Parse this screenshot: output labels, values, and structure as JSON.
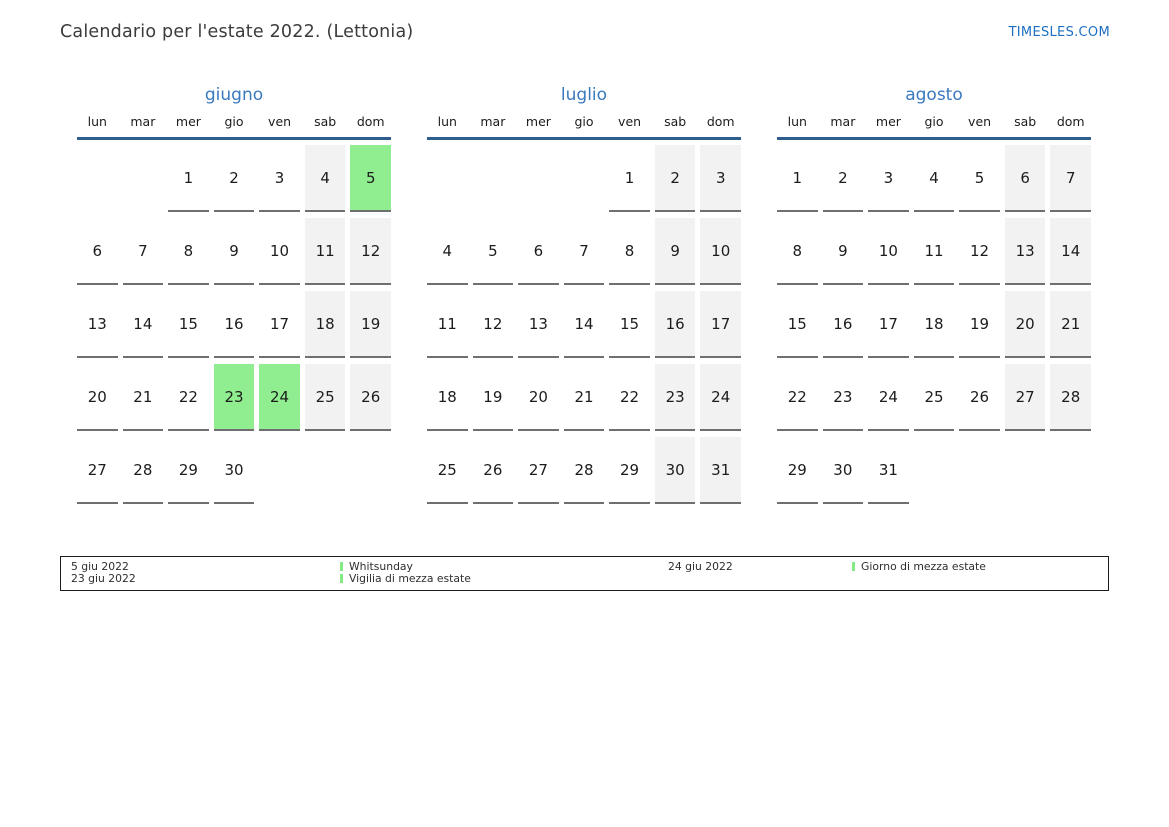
{
  "page": {
    "title": "Calendario per l'estate 2022. (Lettonia)",
    "brand": "TIMESLES.COM"
  },
  "colors": {
    "accent_blue": "#1e6fc0",
    "month_title_blue": "#3a79bd",
    "header_line_blue": "#2f5e8e",
    "holiday_green": "#90ee90",
    "weekend_gray": "#f2f2f2",
    "cell_underline_gray": "#6f6f6f"
  },
  "weekdays": [
    "lun",
    "mar",
    "mer",
    "gio",
    "ven",
    "sab",
    "dom"
  ],
  "months": [
    {
      "name": "giugno",
      "weeks": [
        [
          null,
          null,
          1,
          2,
          3,
          4,
          5
        ],
        [
          6,
          7,
          8,
          9,
          10,
          11,
          12
        ],
        [
          13,
          14,
          15,
          16,
          17,
          18,
          19
        ],
        [
          20,
          21,
          22,
          23,
          24,
          25,
          26
        ],
        [
          27,
          28,
          29,
          30,
          null,
          null,
          null
        ]
      ],
      "highlighted_days": [
        5,
        23,
        24
      ]
    },
    {
      "name": "luglio",
      "weeks": [
        [
          null,
          null,
          null,
          null,
          1,
          2,
          3
        ],
        [
          4,
          5,
          6,
          7,
          8,
          9,
          10
        ],
        [
          11,
          12,
          13,
          14,
          15,
          16,
          17
        ],
        [
          18,
          19,
          20,
          21,
          22,
          23,
          24
        ],
        [
          25,
          26,
          27,
          28,
          29,
          30,
          31
        ]
      ],
      "highlighted_days": []
    },
    {
      "name": "agosto",
      "weeks": [
        [
          1,
          2,
          3,
          4,
          5,
          6,
          7
        ],
        [
          8,
          9,
          10,
          11,
          12,
          13,
          14
        ],
        [
          15,
          16,
          17,
          18,
          19,
          20,
          21
        ],
        [
          22,
          23,
          24,
          25,
          26,
          27,
          28
        ],
        [
          29,
          30,
          31,
          null,
          null,
          null,
          null
        ]
      ],
      "highlighted_days": []
    }
  ],
  "legend": {
    "groups": [
      {
        "dates": [
          "5 giu 2022",
          "23 giu 2022"
        ],
        "labels": [
          "Whitsunday",
          "Vigilia di mezza estate"
        ]
      },
      {
        "dates": [
          "24 giu 2022"
        ],
        "labels": [
          "Giorno di mezza estate"
        ]
      }
    ]
  }
}
